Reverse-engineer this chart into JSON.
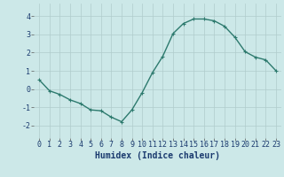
{
  "x": [
    0,
    1,
    2,
    3,
    4,
    5,
    6,
    7,
    8,
    9,
    10,
    11,
    12,
    13,
    14,
    15,
    16,
    17,
    18,
    19,
    20,
    21,
    22,
    23
  ],
  "y": [
    0.5,
    -0.1,
    -0.3,
    -0.6,
    -0.8,
    -1.15,
    -1.2,
    -1.55,
    -1.8,
    -1.15,
    -0.2,
    0.9,
    1.8,
    3.05,
    3.6,
    3.85,
    3.85,
    3.75,
    3.45,
    2.85,
    2.05,
    1.75,
    1.6,
    1.0
  ],
  "line_color": "#2d7a6e",
  "marker": "+",
  "markersize": 3,
  "linewidth": 1.0,
  "xlabel": "Humidex (Indice chaleur)",
  "xlim": [
    -0.5,
    23.5
  ],
  "ylim": [
    -2.7,
    4.7
  ],
  "yticks": [
    -2,
    -1,
    0,
    1,
    2,
    3,
    4
  ],
  "xticks": [
    0,
    1,
    2,
    3,
    4,
    5,
    6,
    7,
    8,
    9,
    10,
    11,
    12,
    13,
    14,
    15,
    16,
    17,
    18,
    19,
    20,
    21,
    22,
    23
  ],
  "bg_color": "#cce8e8",
  "grid_color": "#b0cccc",
  "xlabel_fontsize": 7,
  "tick_fontsize": 6,
  "xlabel_color": "#1a3a6e",
  "tick_color": "#1a3a6e"
}
